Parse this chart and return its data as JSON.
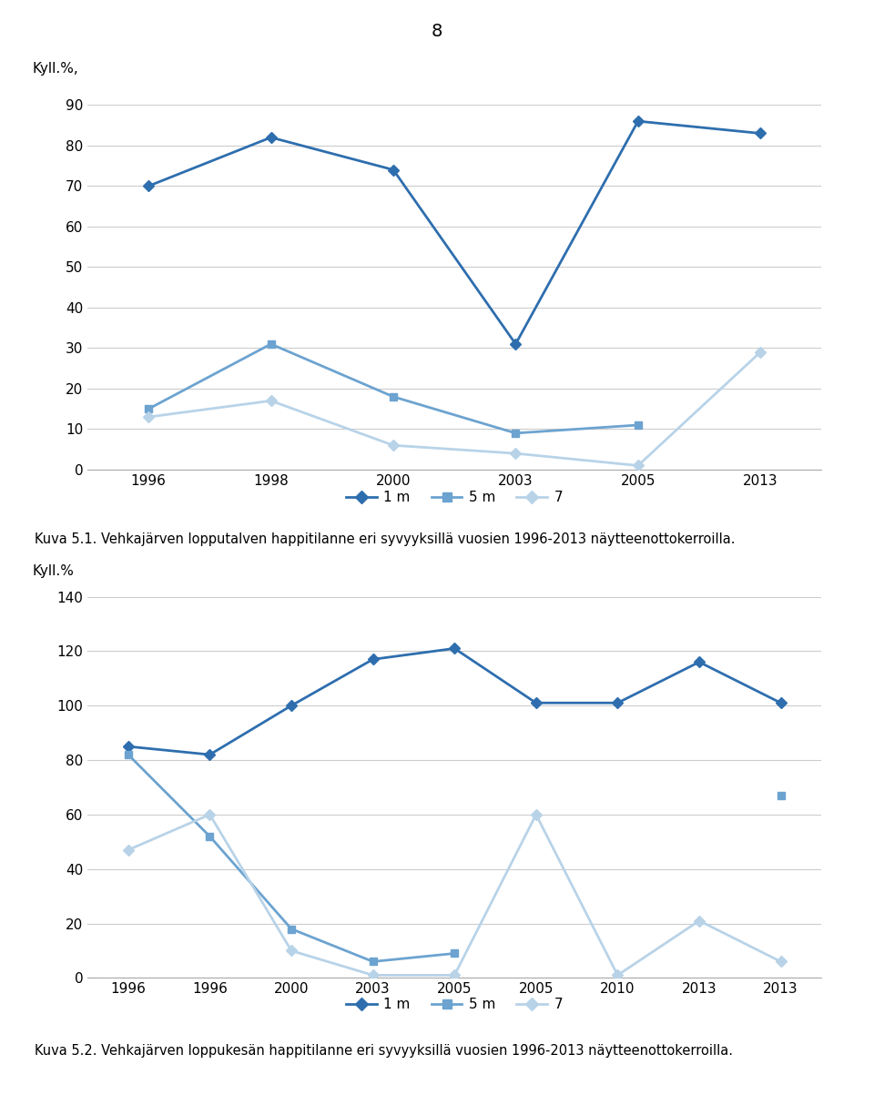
{
  "page_number": "8",
  "chart1": {
    "ylabel": "Kyll.%,",
    "ylim": [
      0,
      90
    ],
    "yticks": [
      0,
      10,
      20,
      30,
      40,
      50,
      60,
      70,
      80,
      90
    ],
    "x_labels": [
      "1996",
      "1998",
      "2000",
      "2003",
      "2005",
      "2013"
    ],
    "x_positions": [
      0,
      1,
      2,
      3,
      4,
      5
    ],
    "series": {
      "1m": {
        "values": [
          70,
          82,
          74,
          31,
          86,
          83
        ],
        "color": "#2E6EAE",
        "marker": "D",
        "linewidth": 2.0,
        "markersize": 6
      },
      "5m": {
        "values": [
          15,
          31,
          18,
          9,
          11,
          null
        ],
        "color": "#6CA3D0",
        "marker": "s",
        "linewidth": 2.0,
        "markersize": 6
      },
      "7": {
        "values": [
          13,
          17,
          6,
          4,
          1,
          29
        ],
        "color": "#B8D3E8",
        "marker": "D",
        "linewidth": 2.0,
        "markersize": 6
      }
    },
    "caption": "Kuva 5.1. Vehkajärven lopputalven happitilanne eri syvyyksillä vuosien 1996-2013 näytteenottokerroilla."
  },
  "chart2": {
    "ylabel": "Kyll.%",
    "ylim": [
      0,
      140
    ],
    "yticks": [
      0,
      20,
      40,
      60,
      80,
      100,
      120,
      140
    ],
    "x_labels": [
      "1996",
      "1996",
      "2000",
      "2003",
      "2005",
      "2005",
      "2010",
      "2013",
      "2013"
    ],
    "x_positions": [
      0,
      1,
      2,
      3,
      4,
      5,
      6,
      7,
      8
    ],
    "series": {
      "1m": {
        "values": [
          85,
          82,
          100,
          117,
          121,
          101,
          101,
          116,
          101
        ],
        "color": "#2E6EAE",
        "marker": "D",
        "linewidth": 2.0,
        "markersize": 6
      },
      "5m": {
        "values": [
          82,
          52,
          18,
          6,
          9,
          null,
          null,
          null,
          67
        ],
        "color": "#6CA3D0",
        "marker": "s",
        "linewidth": 2.0,
        "markersize": 6
      },
      "7": {
        "values": [
          47,
          60,
          10,
          1,
          1,
          60,
          1,
          21,
          6
        ],
        "color": "#B8D3E8",
        "marker": "D",
        "linewidth": 2.0,
        "markersize": 6
      }
    },
    "caption": "Kuva 5.2. Vehkajärven loppukesän happitilanne eri syvyyksillä vuosien 1996-2013 näytteenottokerroilla."
  },
  "legend_labels": [
    "1 m",
    "5 m",
    "7"
  ],
  "colors": {
    "1m": "#2E6EAE",
    "5m": "#6CA3D0",
    "7": "#B8D3E8"
  },
  "legend_markers": [
    "D",
    "s",
    "D"
  ],
  "background_color": "#ffffff",
  "grid_color": "#cccccc",
  "page_number_fontsize": 14,
  "axis_fontsize": 11,
  "caption_fontsize": 10.5
}
